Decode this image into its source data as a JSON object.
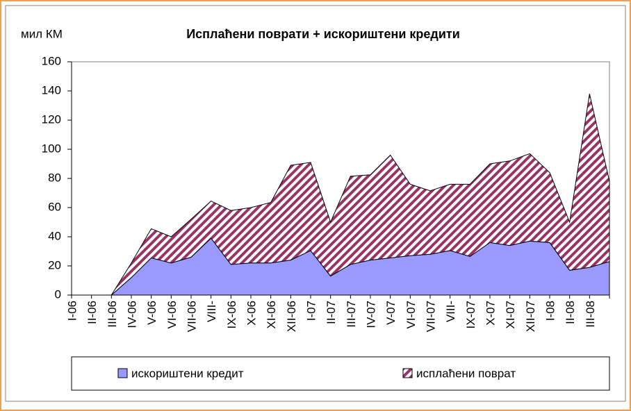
{
  "chart_data": {
    "type": "stacked_area",
    "title": "Исплаћени поврати + искориштени кредити",
    "y_label": "мил КМ",
    "categories": [
      "I-06",
      "II-06",
      "III-06",
      "IV-06",
      "V-06",
      "VI-06",
      "VII-06",
      "VIII-",
      "IX-06",
      "X-06",
      "XI-06",
      "XII-06",
      "I-07",
      "II-07",
      "III-07",
      "IV-07",
      "V-07",
      "VI-07",
      "VII-07",
      "VIII-",
      "IX-07",
      "X-07",
      "XI-07",
      "XII-07",
      "I-08",
      "II-08",
      "III-08",
      null
    ],
    "series": [
      {
        "name": "искориштени кредит",
        "color": "#9999ff",
        "values": [
          0,
          0,
          0,
          12,
          25.5,
          22,
          26,
          39,
          21,
          22,
          22,
          24,
          30.5,
          13,
          21,
          24,
          25.5,
          27,
          28,
          30.5,
          26.5,
          36,
          34,
          37,
          36,
          17,
          19,
          23
        ]
      },
      {
        "name": "исплаћени поврат",
        "color": "#993366",
        "values": [
          0,
          0,
          0,
          10,
          20,
          18,
          26,
          25.5,
          37,
          38,
          41.5,
          65,
          60.5,
          37,
          60.5,
          58.5,
          70.5,
          49,
          43.5,
          45.5,
          49.5,
          54,
          58,
          60,
          48,
          33,
          119,
          55
        ]
      }
    ],
    "ylim": [
      0,
      160
    ],
    "yticks": [
      0,
      20,
      40,
      60,
      80,
      100,
      120,
      140,
      160
    ],
    "grid": false,
    "legend": "bottom"
  }
}
